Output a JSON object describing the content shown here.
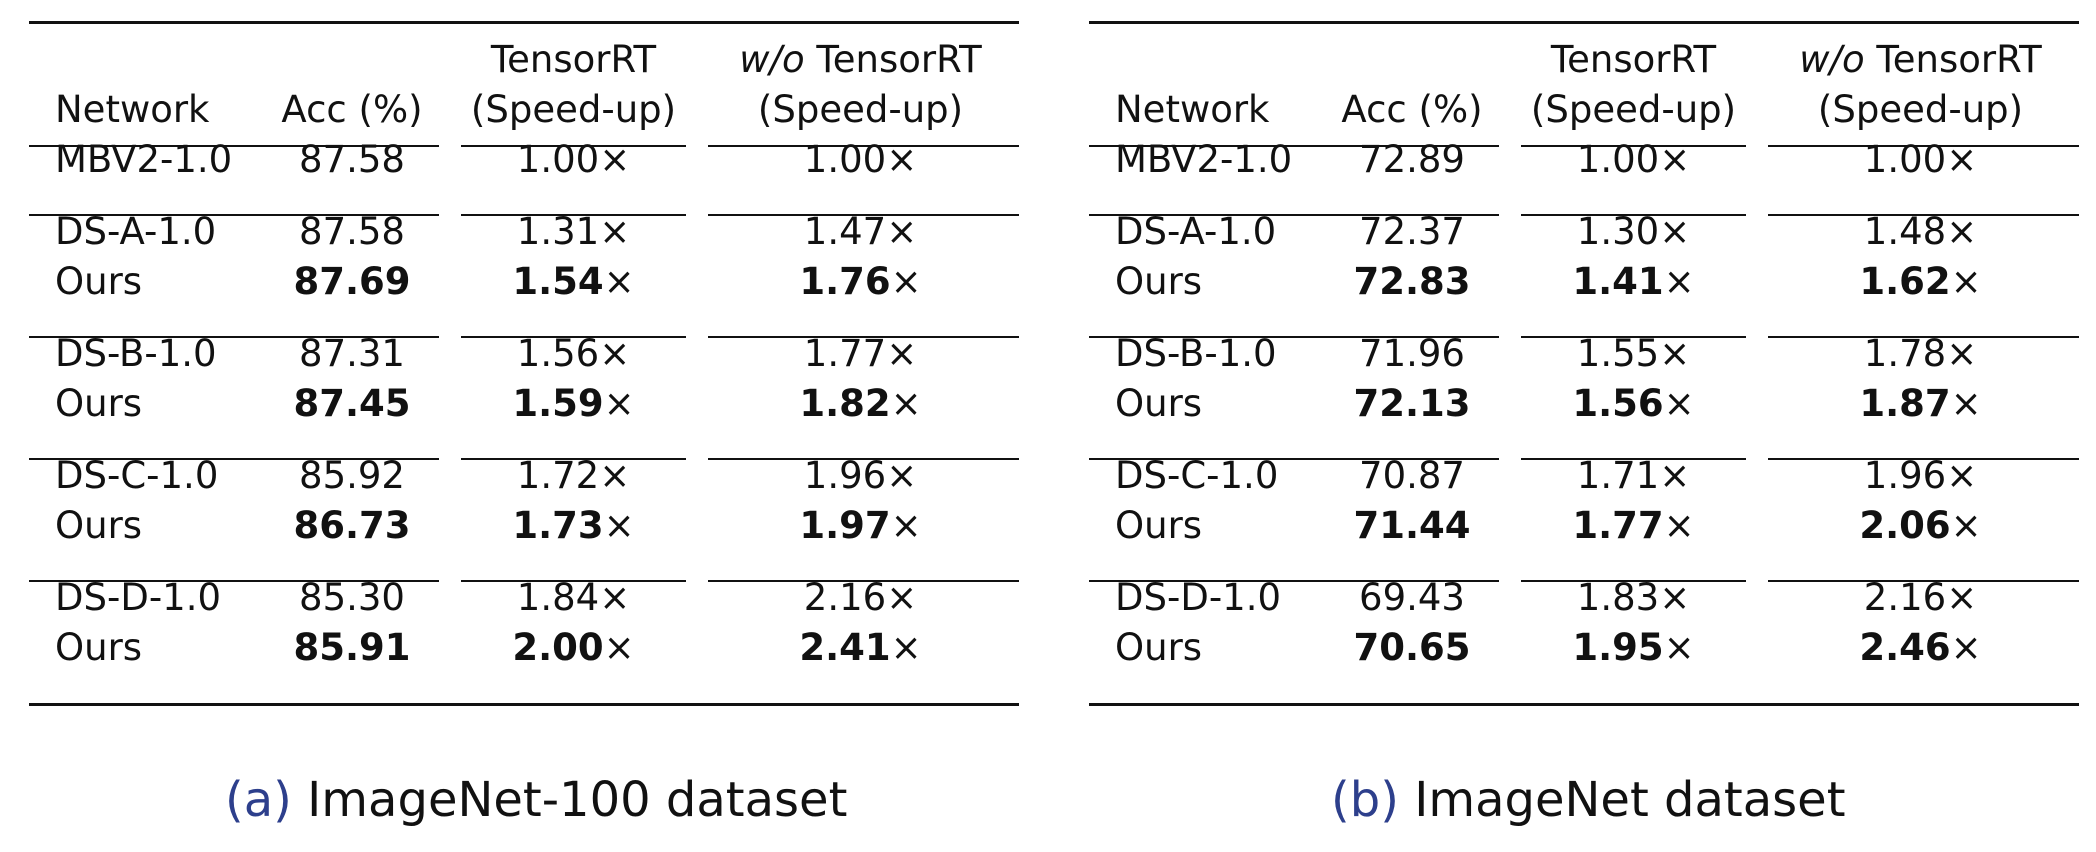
{
  "colors": {
    "caption_label": "#2d3f8c",
    "text": "#111111"
  },
  "headers": {
    "network": "Network",
    "acc": "Acc (%)",
    "trt_line1": "TensorRT",
    "trt_line2": "(Speed-up)",
    "wo_prefix": "w/o",
    "wo_line1_rest": " TensorRT",
    "wo_line2": "(Speed-up)"
  },
  "tables": [
    {
      "caption_label": "(a)",
      "caption_text": "ImageNet-100 dataset",
      "baseline": {
        "network": "MBV2-1.0",
        "acc": "87.58",
        "trt": "1.00",
        "wo": "1.00"
      },
      "groups": [
        {
          "ds": {
            "network": "DS-A-1.0",
            "acc": "87.58",
            "trt": "1.31",
            "wo": "1.47"
          },
          "ours": {
            "network": "Ours",
            "acc": "87.69",
            "trt": "1.54",
            "wo": "1.76"
          }
        },
        {
          "ds": {
            "network": "DS-B-1.0",
            "acc": "87.31",
            "trt": "1.56",
            "wo": "1.77"
          },
          "ours": {
            "network": "Ours",
            "acc": "87.45",
            "trt": "1.59",
            "wo": "1.82"
          }
        },
        {
          "ds": {
            "network": "DS-C-1.0",
            "acc": "85.92",
            "trt": "1.72",
            "wo": "1.96"
          },
          "ours": {
            "network": "Ours",
            "acc": "86.73",
            "trt": "1.73",
            "wo": "1.97"
          }
        },
        {
          "ds": {
            "network": "DS-D-1.0",
            "acc": "85.30",
            "trt": "1.84",
            "wo": "2.16"
          },
          "ours": {
            "network": "Ours",
            "acc": "85.91",
            "trt": "2.00",
            "wo": "2.41"
          }
        }
      ]
    },
    {
      "caption_label": "(b)",
      "caption_text": "ImageNet dataset",
      "baseline": {
        "network": "MBV2-1.0",
        "acc": "72.89",
        "trt": "1.00",
        "wo": "1.00"
      },
      "groups": [
        {
          "ds": {
            "network": "DS-A-1.0",
            "acc": "72.37",
            "trt": "1.30",
            "wo": "1.48"
          },
          "ours": {
            "network": "Ours",
            "acc": "72.83",
            "trt": "1.41",
            "wo": "1.62"
          }
        },
        {
          "ds": {
            "network": "DS-B-1.0",
            "acc": "71.96",
            "trt": "1.55",
            "wo": "1.78"
          },
          "ours": {
            "network": "Ours",
            "acc": "72.13",
            "trt": "1.56",
            "wo": "1.87"
          }
        },
        {
          "ds": {
            "network": "DS-C-1.0",
            "acc": "70.87",
            "trt": "1.71",
            "wo": "1.96"
          },
          "ours": {
            "network": "Ours",
            "acc": "71.44",
            "trt": "1.77",
            "wo": "2.06"
          }
        },
        {
          "ds": {
            "network": "DS-D-1.0",
            "acc": "69.43",
            "trt": "1.83",
            "wo": "2.16"
          },
          "ours": {
            "network": "Ours",
            "acc": "70.65",
            "trt": "1.95",
            "wo": "2.46"
          }
        }
      ]
    }
  ],
  "times_symbol": "×"
}
